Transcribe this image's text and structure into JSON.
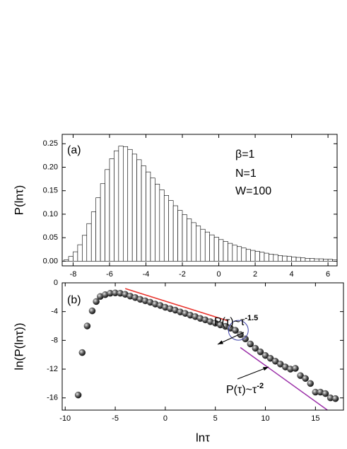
{
  "chart_data": [
    {
      "type": "histogram",
      "y_label": "P(lnτ)",
      "annotations": [
        "(a)",
        "β=1",
        "N=1",
        "W=100"
      ],
      "bins": [
        -8.5,
        -8.25,
        -8,
        -7.75,
        -7.5,
        -7.25,
        -7,
        -6.75,
        -6.5,
        -6.25,
        -6,
        -5.75,
        -5.5,
        -5.25,
        -5,
        -4.75,
        -4.5,
        -4.25,
        -4,
        -3.75,
        -3.5,
        -3.25,
        -3,
        -2.75,
        -2.5,
        -2.25,
        -2,
        -1.75,
        -1.5,
        -1.25,
        -1,
        -0.75,
        -0.5,
        -0.25,
        0,
        0.25,
        0.5,
        0.75,
        1,
        1.25,
        1.5,
        1.75,
        2,
        2.25,
        2.5,
        2.75,
        3,
        3.25,
        3.5,
        3.75,
        4,
        4.25,
        4.5,
        4.75,
        5,
        5.25,
        5.5,
        5.75,
        6,
        6.25,
        6.5
      ],
      "values": [
        0.003,
        0.01,
        0.02,
        0.035,
        0.055,
        0.08,
        0.105,
        0.135,
        0.165,
        0.195,
        0.218,
        0.235,
        0.245,
        0.244,
        0.238,
        0.228,
        0.216,
        0.203,
        0.19,
        0.177,
        0.164,
        0.152,
        0.14,
        0.129,
        0.118,
        0.108,
        0.099,
        0.09,
        0.082,
        0.075,
        0.068,
        0.062,
        0.056,
        0.051,
        0.046,
        0.042,
        0.038,
        0.034,
        0.031,
        0.028,
        0.025,
        0.023,
        0.021,
        0.019,
        0.017,
        0.015,
        0.014,
        0.012,
        0.011,
        0.01,
        0.009,
        0.008,
        0.007,
        0.006,
        0.006,
        0.005,
        0.005,
        0.004,
        0.004,
        0.003
      ],
      "color": "#000000",
      "xlim": [
        -8.6,
        6.5
      ],
      "ylim": [
        -0.01,
        0.27
      ],
      "xticks": [
        -8,
        -6,
        -4,
        -2,
        0,
        2,
        4,
        6
      ],
      "yticks": [
        {
          "value": 0,
          "label": "0.00"
        },
        {
          "value": 0.05,
          "label": "0.05"
        },
        {
          "value": 0.1,
          "label": "0.10"
        },
        {
          "value": 0.15,
          "label": "0.15"
        },
        {
          "value": 0.2,
          "label": "0.20"
        },
        {
          "value": 0.25,
          "label": "0.25"
        }
      ]
    },
    {
      "type": "scatter",
      "y_label": "ln(P(lnτ))",
      "x_label": "lnτ",
      "annotations": [
        "(b)"
      ],
      "x": [
        -8.7,
        -8.3,
        -7.8,
        -7.3,
        -6.9,
        -6.5,
        -6,
        -5.5,
        -5,
        -4.5,
        -4,
        -3.5,
        -3,
        -2.5,
        -2,
        -1.5,
        -1,
        -0.5,
        0,
        0.5,
        1,
        1.5,
        2,
        2.5,
        3,
        3.5,
        4,
        4.5,
        5,
        5.5,
        6,
        6.5,
        7,
        7.5,
        8,
        8.5,
        9,
        9.5,
        10,
        10.5,
        11,
        11.5,
        12,
        12.5,
        13,
        13.5,
        14,
        14.5,
        15,
        15.5,
        16,
        16.5,
        17
      ],
      "values": [
        -15.6,
        -9.7,
        -6,
        -3.9,
        -2.6,
        -1.9,
        -1.65,
        -1.45,
        -1.4,
        -1.45,
        -1.6,
        -1.85,
        -2.05,
        -2.3,
        -2.5,
        -2.7,
        -2.95,
        -3.15,
        -3.4,
        -3.6,
        -3.8,
        -4.05,
        -4.25,
        -4.5,
        -4.7,
        -4.95,
        -5.15,
        -5.4,
        -5.6,
        -5.85,
        -6.05,
        -6.3,
        -6.6,
        -7.2,
        -7.8,
        -8.5,
        -9.1,
        -9.6,
        -10.1,
        -10.5,
        -10.9,
        -11.3,
        -11.7,
        -12,
        -11.9,
        -12.9,
        -13.3,
        -14,
        -15.2,
        -15.2,
        -15.4,
        -16,
        -16.1
      ],
      "color": "#333333",
      "reference_lines": [
        {
          "label": "P(τ)~τ",
          "exponent": "-1.5",
          "color": "#e8312a",
          "x": [
            -4,
            6.3
          ],
          "y": [
            -0.8,
            -5.3
          ]
        },
        {
          "label": "P(τ)~τ",
          "exponent": "-2",
          "color": "#9b2fa8",
          "x": [
            7.5,
            16.2
          ],
          "y": [
            -9.0,
            -17.7
          ]
        }
      ],
      "highlight": {
        "x": 7.3,
        "y": -6.6,
        "color": "#3b3fa8"
      },
      "xlim": [
        -10.3,
        17.8
      ],
      "ylim": [
        -17.7,
        0
      ],
      "xticks": [
        -10,
        -5,
        0,
        5,
        10,
        15
      ],
      "yticks": [
        0,
        -4,
        -8,
        -12,
        -16
      ]
    }
  ]
}
